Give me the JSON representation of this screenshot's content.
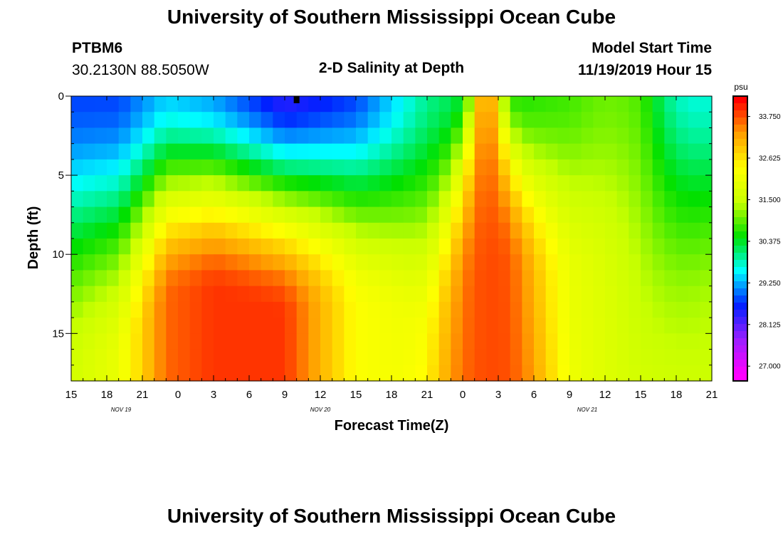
{
  "page_title": "University of Southern Mississippi Ocean Cube",
  "footer_title": "University of Southern Mississippi Ocean Cube",
  "station": {
    "id": "PTBM6",
    "coords": "30.2130N 88.5050W"
  },
  "model": {
    "label": "Model Start Time",
    "start": "11/19/2019 Hour 15"
  },
  "colors": {
    "palette": [
      "#ff00ff",
      "#9a20ff",
      "#0020ff",
      "#00ffff",
      "#00e000",
      "#c8ff00",
      "#ffff00",
      "#ffa000",
      "#ff0000"
    ]
  },
  "chart_data": {
    "type": "heatmap",
    "title": "2-D Salinity at Depth",
    "xlabel": "Forecast Time(Z)",
    "ylabel": "Depth (ft)",
    "colorbar_unit": "psu",
    "x_ticks": [
      "15",
      "18",
      "21",
      "0",
      "3",
      "6",
      "9",
      "12",
      "15",
      "18",
      "21",
      "0",
      "3",
      "6",
      "9",
      "12",
      "15",
      "18",
      "21"
    ],
    "y_ticks": [
      "0",
      "5",
      "10",
      "15"
    ],
    "y_tick_values": [
      0,
      5,
      10,
      15
    ],
    "ylim": [
      0,
      18
    ],
    "date_labels": [
      {
        "text": "NOV 19",
        "tick_index": 1.4
      },
      {
        "text": "NOV 20",
        "tick_index": 7
      },
      {
        "text": "NOV 21",
        "tick_index": 14.5
      }
    ],
    "colorbar_ticks": [
      "33.750",
      "32.625",
      "31.500",
      "30.375",
      "29.250",
      "28.125",
      "27.000"
    ],
    "colorbar_values": [
      33.75,
      32.625,
      31.5,
      30.375,
      29.25,
      28.125,
      27.0
    ],
    "colorbar_range": [
      26.6,
      34.3
    ],
    "current_time_marker_hour": 19,
    "columns": 54,
    "rows": 18,
    "hours_span": 54
  }
}
